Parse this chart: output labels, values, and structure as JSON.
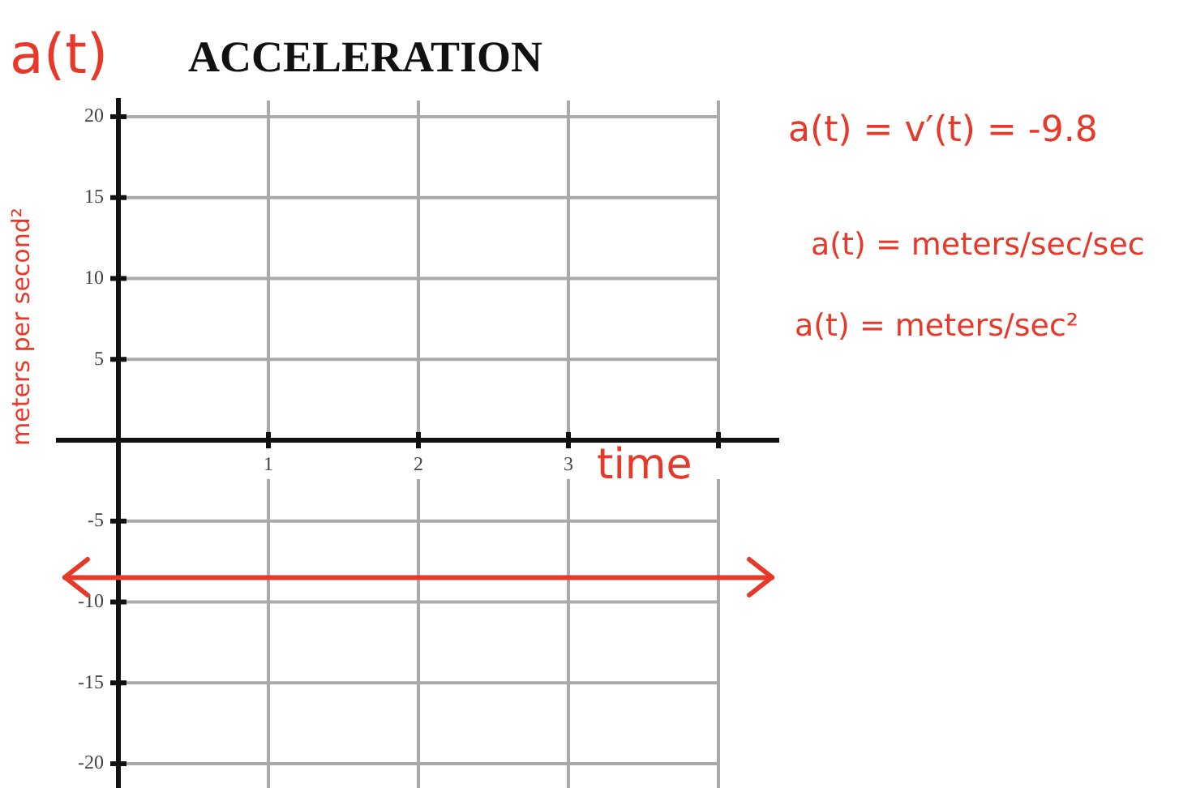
{
  "chart_data": {
    "type": "line",
    "title": "ACCELERATION",
    "xlabel": "time",
    "ylabel": "meters per second²",
    "annotations": [
      "a(t)",
      "a(t) = v′(t) = -9.8",
      "a(t) = meters/sec/sec",
      "a(t) = meters/sec²"
    ],
    "ref_lines": [
      {
        "axis": "y",
        "value": -8.5,
        "color": "#e8382a",
        "line_style": "solid"
      }
    ],
    "xlim": [
      -0.4,
      4.4
    ],
    "xticks": [
      {
        "value": 0,
        "label": null
      },
      1,
      2,
      3,
      {
        "value": 4,
        "label": null
      }
    ],
    "ylim": [
      -21.5,
      21
    ],
    "yticks": [
      -20,
      -15,
      -10,
      -5,
      {
        "value": 0,
        "label": null
      },
      5,
      10,
      15,
      20
    ],
    "grid": true,
    "legend": false
  }
}
